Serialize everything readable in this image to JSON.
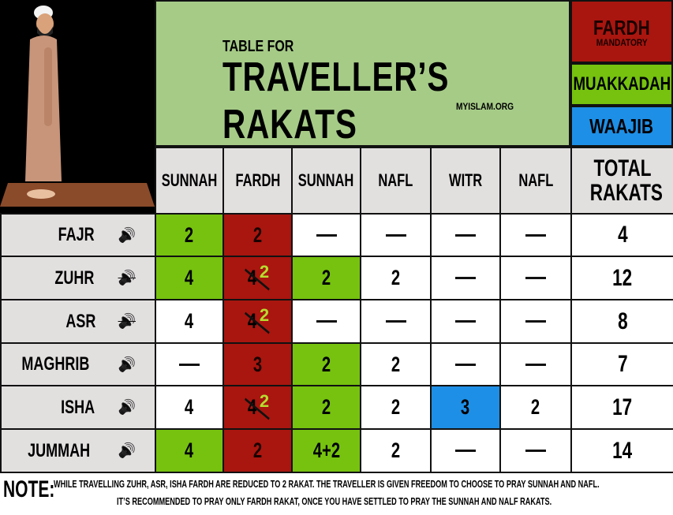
{
  "title": {
    "small": "TABLE FOR",
    "big": "TRAVELLER’S RAKATS",
    "site": "MYISLAM.ORG"
  },
  "legend": [
    {
      "label": "FARDH",
      "sub": "MANDATORY",
      "color": "#a8160f",
      "text": "#1a0000"
    },
    {
      "label": "MUAKKADAH",
      "sub": "",
      "color": "#76c20f",
      "text": "#111"
    },
    {
      "label": "WAAJIB",
      "sub": "",
      "color": "#1e8fe6",
      "text": "#111"
    }
  ],
  "colors": {
    "white": "#ffffff",
    "green": "#76c20f",
    "red": "#a8160f",
    "blue": "#1e8fe6",
    "grey": "#e2dfdf"
  },
  "headers": [
    "SUNNAH",
    "FARDH",
    "SUNNAH",
    "NAFL",
    "WITR",
    "NAFL",
    "TOTAL RAKATS"
  ],
  "rows": [
    {
      "name": "FAJR",
      "icon": "speaker-loud-icon",
      "cells": [
        {
          "v": "2",
          "c": "green"
        },
        {
          "v": "2",
          "c": "red"
        },
        {
          "v": "—",
          "c": "white"
        },
        {
          "v": "—",
          "c": "white"
        },
        {
          "v": "—",
          "c": "white"
        },
        {
          "v": "—",
          "c": "white"
        }
      ],
      "total": "4"
    },
    {
      "name": "ZUHR",
      "icon": "speaker-muted-icon",
      "cells": [
        {
          "v": "4",
          "c": "green"
        },
        {
          "v": "4",
          "c": "red",
          "new": "2"
        },
        {
          "v": "2",
          "c": "green"
        },
        {
          "v": "2",
          "c": "white"
        },
        {
          "v": "—",
          "c": "white"
        },
        {
          "v": "—",
          "c": "white"
        }
      ],
      "total": "12"
    },
    {
      "name": "ASR",
      "icon": "speaker-muted-icon",
      "cells": [
        {
          "v": "4",
          "c": "white"
        },
        {
          "v": "4",
          "c": "red",
          "new": "2"
        },
        {
          "v": "—",
          "c": "white"
        },
        {
          "v": "—",
          "c": "white"
        },
        {
          "v": "—",
          "c": "white"
        },
        {
          "v": "—",
          "c": "white"
        }
      ],
      "total": "8"
    },
    {
      "name": "MAGHRIB",
      "icon": "speaker-loud-icon",
      "cells": [
        {
          "v": "—",
          "c": "white"
        },
        {
          "v": "3",
          "c": "red"
        },
        {
          "v": "2",
          "c": "green"
        },
        {
          "v": "2",
          "c": "white"
        },
        {
          "v": "—",
          "c": "white"
        },
        {
          "v": "—",
          "c": "white"
        }
      ],
      "total": "7"
    },
    {
      "name": "ISHA",
      "icon": "speaker-loud-icon",
      "cells": [
        {
          "v": "4",
          "c": "white"
        },
        {
          "v": "4",
          "c": "red",
          "new": "2"
        },
        {
          "v": "2",
          "c": "green"
        },
        {
          "v": "2",
          "c": "white"
        },
        {
          "v": "3",
          "c": "blue"
        },
        {
          "v": "2",
          "c": "white"
        }
      ],
      "total": "17"
    },
    {
      "name": "JUMMAH",
      "icon": "speaker-loud-icon",
      "cells": [
        {
          "v": "4",
          "c": "green"
        },
        {
          "v": "2",
          "c": "red"
        },
        {
          "v": "4+2",
          "c": "green"
        },
        {
          "v": "2",
          "c": "white"
        },
        {
          "v": "—",
          "c": "white"
        },
        {
          "v": "—",
          "c": "white"
        }
      ],
      "total": "14"
    }
  ],
  "note": {
    "label": "NOTE:",
    "line1": "WHILE TRAVELLING ZUHR, ASR, ISHA FARDH ARE REDUCED TO 2 RAKAT. THE TRAVELLER IS GIVEN FREEDOM TO CHOOSE TO PRAY SUNNAH AND NAFL.",
    "line2": "IT’S RECOMMENDED TO PRAY ONLY FARDH RAKAT, ONCE YOU HAVE SETTLED TO PRAY THE SUNNAH AND NALF RAKATS."
  }
}
